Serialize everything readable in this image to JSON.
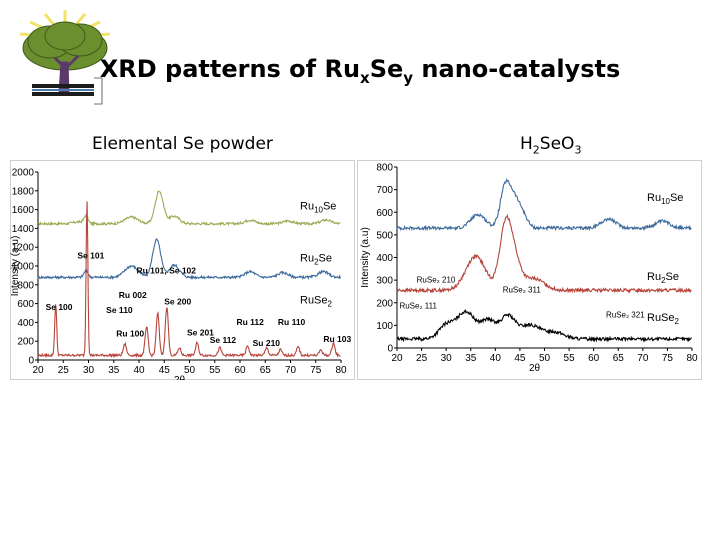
{
  "slide": {
    "title_main": "XRD patterns of Ru",
    "title_sub1": "x",
    "title_mid": "Se",
    "title_sub2": "y",
    "title_end": " nano-catalysts"
  },
  "left_panel": {
    "title": "Elemental Se powder"
  },
  "right_panel": {
    "title_a": "H",
    "title_sub_a": "2",
    "title_b": "SeO",
    "title_sub_b": "3"
  },
  "colors": {
    "green": "#9aab55",
    "blue": "#3d6a9c",
    "red": "#b7443b",
    "black": "#000000"
  },
  "chart_data": [
    {
      "type": "line",
      "xlabel": "2θ",
      "ylabel": "Intensity (a.u)",
      "xlim": [
        20,
        80
      ],
      "ylim": [
        0,
        2000
      ],
      "xticks": [
        "20",
        "25",
        "30",
        "35",
        "40",
        "45",
        "50",
        "55",
        "60",
        "65",
        "70",
        "75",
        "80"
      ],
      "yticks": [
        "0",
        "200",
        "400",
        "600",
        "800",
        "1000",
        "1200",
        "1400",
        "1600",
        "1800",
        "2000"
      ],
      "series_labels": [
        {
          "sub": "10",
          "pre": "Ru",
          "post": "Se",
          "y": 1600
        },
        {
          "sub": "2",
          "pre": "Ru",
          "post": "Se",
          "y": 1050
        },
        {
          "sub": "2",
          "pre": "RuSe",
          "post": "",
          "y": 600
        }
      ],
      "series": [
        {
          "color": "green",
          "base": 1450,
          "peaks": [
            [
              29.5,
              80,
              0.4
            ],
            [
              38.5,
              70,
              1.3
            ],
            [
              44,
              350,
              0.8
            ],
            [
              47,
              80,
              1.0
            ],
            [
              62,
              40,
              1.0
            ],
            [
              69.5,
              30,
              1.0
            ],
            [
              77,
              40,
              1.0
            ],
            [
              28,
              20,
              1.0
            ]
          ]
        },
        {
          "color": "blue",
          "base": 880,
          "peaks": [
            [
              29.5,
              70,
              0.4
            ],
            [
              38.5,
              120,
              1.3
            ],
            [
              43.5,
              400,
              0.8
            ],
            [
              47,
              130,
              1.0
            ],
            [
              62,
              60,
              1.0
            ],
            [
              68.5,
              50,
              1.0
            ],
            [
              76.5,
              60,
              1.0
            ]
          ]
        },
        {
          "color": "red",
          "base": 50,
          "peaks": [
            [
              23.5,
              550,
              0.2
            ],
            [
              29.7,
              1650,
              0.18
            ],
            [
              37.2,
              120,
              0.3
            ],
            [
              41.5,
              300,
              0.3
            ],
            [
              43.7,
              450,
              0.3
            ],
            [
              45.5,
              520,
              0.3
            ],
            [
              48,
              80,
              0.3
            ],
            [
              51.5,
              130,
              0.3
            ],
            [
              56,
              80,
              0.3
            ],
            [
              61.5,
              100,
              0.3
            ],
            [
              65.3,
              80,
              0.3
            ],
            [
              68,
              60,
              0.3
            ],
            [
              71.5,
              90,
              0.3
            ],
            [
              76,
              60,
              0.3
            ],
            [
              78.5,
              130,
              0.3
            ]
          ]
        }
      ],
      "annotations": [
        {
          "text": "Se 101",
          "x": 27.8,
          "y": 1080
        },
        {
          "text": "Ru 101, Se 102",
          "x": 39.5,
          "y": 920
        },
        {
          "text": "Se 100",
          "x": 21.5,
          "y": 530
        },
        {
          "text": "Ru 002",
          "x": 36,
          "y": 660
        },
        {
          "text": "Se 110",
          "x": 33.5,
          "y": 500
        },
        {
          "text": "Se 200",
          "x": 45,
          "y": 590
        },
        {
          "text": "Ru 112",
          "x": 59.3,
          "y": 370
        },
        {
          "text": "Ru 110",
          "x": 67.5,
          "y": 370
        },
        {
          "text": "Ru 100",
          "x": 35.5,
          "y": 250
        },
        {
          "text": "Se 201",
          "x": 49.5,
          "y": 260
        },
        {
          "text": "Se 112",
          "x": 54,
          "y": 180
        },
        {
          "text": "Su 210",
          "x": 62.5,
          "y": 150
        },
        {
          "text": "Ru 103",
          "x": 76.5,
          "y": 190
        }
      ]
    },
    {
      "type": "line",
      "xlabel": "2θ",
      "ylabel": "Intensity (a.u)",
      "xlim": [
        20,
        80
      ],
      "ylim": [
        0,
        800
      ],
      "xticks": [
        "20",
        "25",
        "30",
        "35",
        "40",
        "45",
        "50",
        "55",
        "60",
        "65",
        "70",
        "75",
        "80"
      ],
      "yticks": [
        "0",
        "100",
        "200",
        "300",
        "400",
        "500",
        "600",
        "700",
        "800"
      ],
      "series_labels": [
        {
          "sub": "10",
          "pre": "Ru",
          "post": "Se",
          "y": 650
        },
        {
          "sub": "2",
          "pre": "Ru",
          "post": "Se",
          "y": 300
        },
        {
          "sub": "2",
          "pre": "RuSe",
          "post": "",
          "y": 120
        }
      ],
      "series": [
        {
          "color": "blue",
          "base": 530,
          "peaks": [
            [
              36.5,
              60,
              1.5
            ],
            [
              42,
              180,
              1.0
            ],
            [
              43.8,
              110,
              1.0
            ],
            [
              45.5,
              60,
              1.0
            ],
            [
              63,
              40,
              1.5
            ],
            [
              74,
              30,
              1.5
            ]
          ]
        },
        {
          "color": "red",
          "base": 255,
          "peaks": [
            [
              36,
              150,
              2.0
            ],
            [
              42,
              220,
              1.2
            ],
            [
              43.5,
              150,
              1.5
            ],
            [
              48,
              50,
              2.0
            ]
          ]
        },
        {
          "color": "black",
          "base": 40,
          "peaks": [
            [
              30,
              60,
              1.5
            ],
            [
              34,
              120,
              1.8
            ],
            [
              38.5,
              80,
              1.5
            ],
            [
              42.5,
              100,
              1.5
            ],
            [
              47,
              60,
              2.0
            ],
            [
              52,
              30,
              2.0
            ]
          ]
        }
      ],
      "annotations": [
        {
          "text": "RuSe₂ 210",
          "x": 24,
          "y": 290
        },
        {
          "text": "RuSe₂ 111",
          "x": 20.5,
          "y": 175
        },
        {
          "text": "RuSe₂ 311",
          "x": 41.5,
          "y": 245
        },
        {
          "text": "RuSe₂ 321",
          "x": 62.5,
          "y": 135
        }
      ]
    }
  ]
}
